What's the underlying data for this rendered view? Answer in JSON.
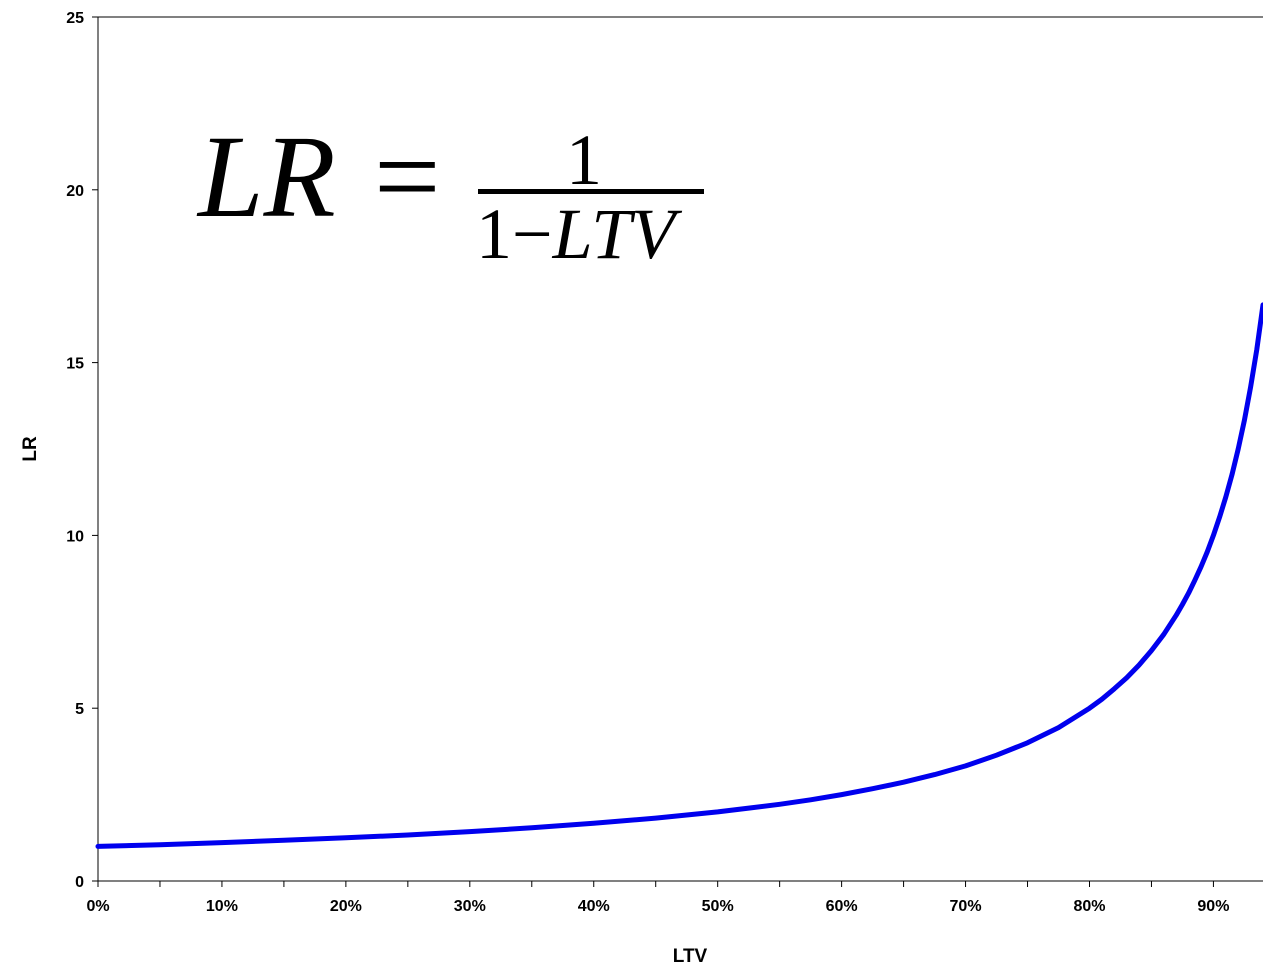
{
  "chart_data": {
    "type": "line",
    "xlabel": "LTV",
    "ylabel": "LR",
    "xlim": [
      0,
      0.94
    ],
    "ylim": [
      0,
      25
    ],
    "x_tick_labels": [
      "0%",
      "10%",
      "20%",
      "30%",
      "40%",
      "50%",
      "60%",
      "70%",
      "80%",
      "90%"
    ],
    "x_tick_values": [
      0,
      0.1,
      0.2,
      0.3,
      0.4,
      0.5,
      0.6,
      0.7,
      0.8,
      0.9
    ],
    "x_minor_ticks": [
      0.05,
      0.15,
      0.25,
      0.35,
      0.45,
      0.55,
      0.65,
      0.75,
      0.85
    ],
    "y_tick_labels": [
      "0",
      "5",
      "10",
      "15",
      "20",
      "25"
    ],
    "y_tick_values": [
      0,
      5,
      10,
      15,
      20,
      25
    ],
    "grid": false,
    "series": [
      {
        "color": "#0000ee",
        "x": [
          0,
          0.05,
          0.1,
          0.15,
          0.2,
          0.25,
          0.3,
          0.35,
          0.4,
          0.45,
          0.5,
          0.525,
          0.55,
          0.575,
          0.6,
          0.625,
          0.65,
          0.675,
          0.7,
          0.725,
          0.75,
          0.775,
          0.8,
          0.81,
          0.82,
          0.83,
          0.84,
          0.85,
          0.86,
          0.87,
          0.875,
          0.88,
          0.885,
          0.89,
          0.895,
          0.9,
          0.905,
          0.91,
          0.915,
          0.92,
          0.925,
          0.93,
          0.935,
          0.94
        ],
        "y": [
          1,
          1.05,
          1.11,
          1.18,
          1.25,
          1.33,
          1.43,
          1.54,
          1.67,
          1.82,
          2,
          2.11,
          2.22,
          2.35,
          2.5,
          2.67,
          2.86,
          3.08,
          3.33,
          3.64,
          4,
          4.44,
          5,
          5.26,
          5.56,
          5.88,
          6.25,
          6.67,
          7.14,
          7.69,
          8,
          8.33,
          8.7,
          9.09,
          9.52,
          10,
          10.53,
          11.11,
          11.76,
          12.5,
          13.33,
          14.29,
          15.38,
          16.67
        ]
      }
    ]
  },
  "annotation": {
    "lhs": "LR",
    "equals": "=",
    "numerator": "1",
    "denominator_one": "1",
    "denominator_minus": "−",
    "denominator_var": "LTV"
  }
}
